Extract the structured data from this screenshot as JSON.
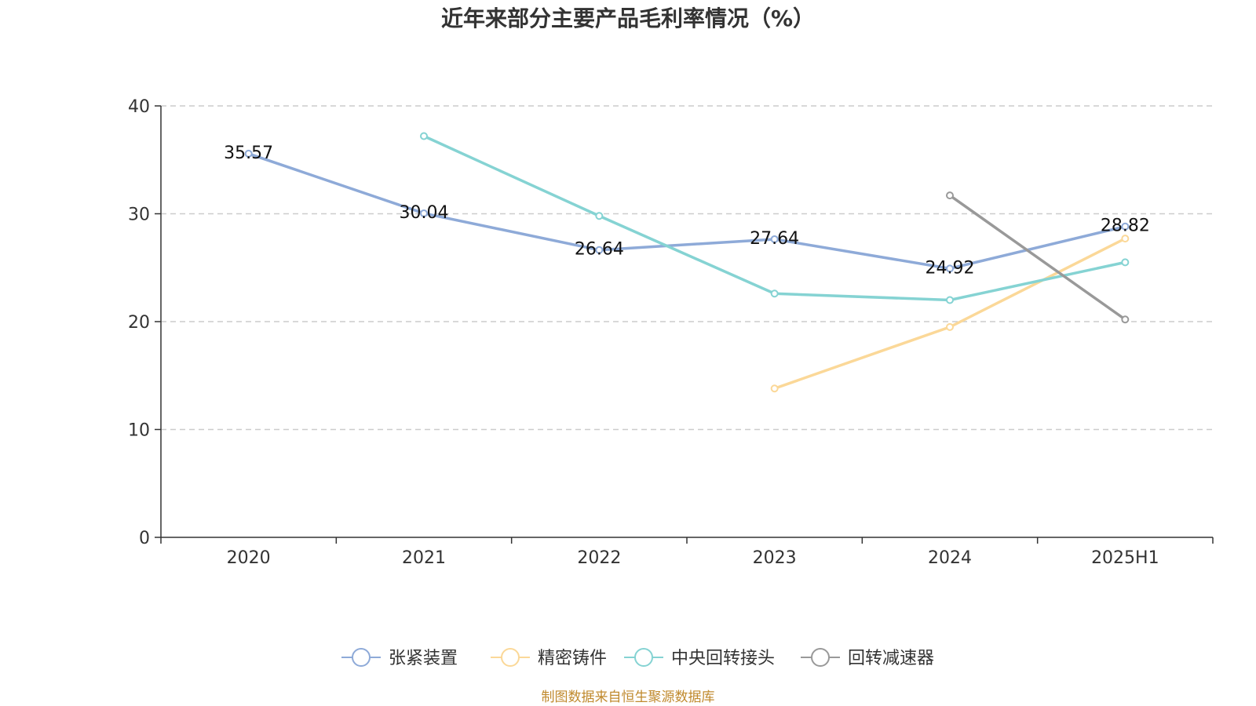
{
  "chart_data": {
    "type": "line",
    "title": "近年来部分主要产品毛利率情况（%）",
    "categories": [
      "2020",
      "2021",
      "2022",
      "2023",
      "2024",
      "2025H1"
    ],
    "ylim": [
      0,
      40
    ],
    "yticks": [
      0,
      10,
      20,
      30,
      40
    ],
    "grid": true,
    "legend_position": "bottom-center",
    "series": [
      {
        "name": "张紧装置",
        "color": "#8eaad8",
        "values": [
          35.57,
          30.04,
          26.64,
          27.64,
          24.92,
          28.82
        ],
        "labels": [
          "35.57",
          "30.04",
          "26.64",
          "27.64",
          "24.92",
          "28.82"
        ]
      },
      {
        "name": "精密铸件",
        "color": "#fbd898",
        "values": [
          null,
          null,
          null,
          13.8,
          19.5,
          27.7
        ],
        "labels": null
      },
      {
        "name": "中央回转接头",
        "color": "#85d3d3",
        "values": [
          null,
          37.2,
          29.8,
          22.6,
          22.0,
          25.5
        ],
        "labels": null
      },
      {
        "name": "回转减速器",
        "color": "#999999",
        "values": [
          null,
          null,
          null,
          null,
          31.7,
          20.2
        ],
        "labels": null
      }
    ],
    "source": "制图数据来自恒生聚源数据库"
  }
}
